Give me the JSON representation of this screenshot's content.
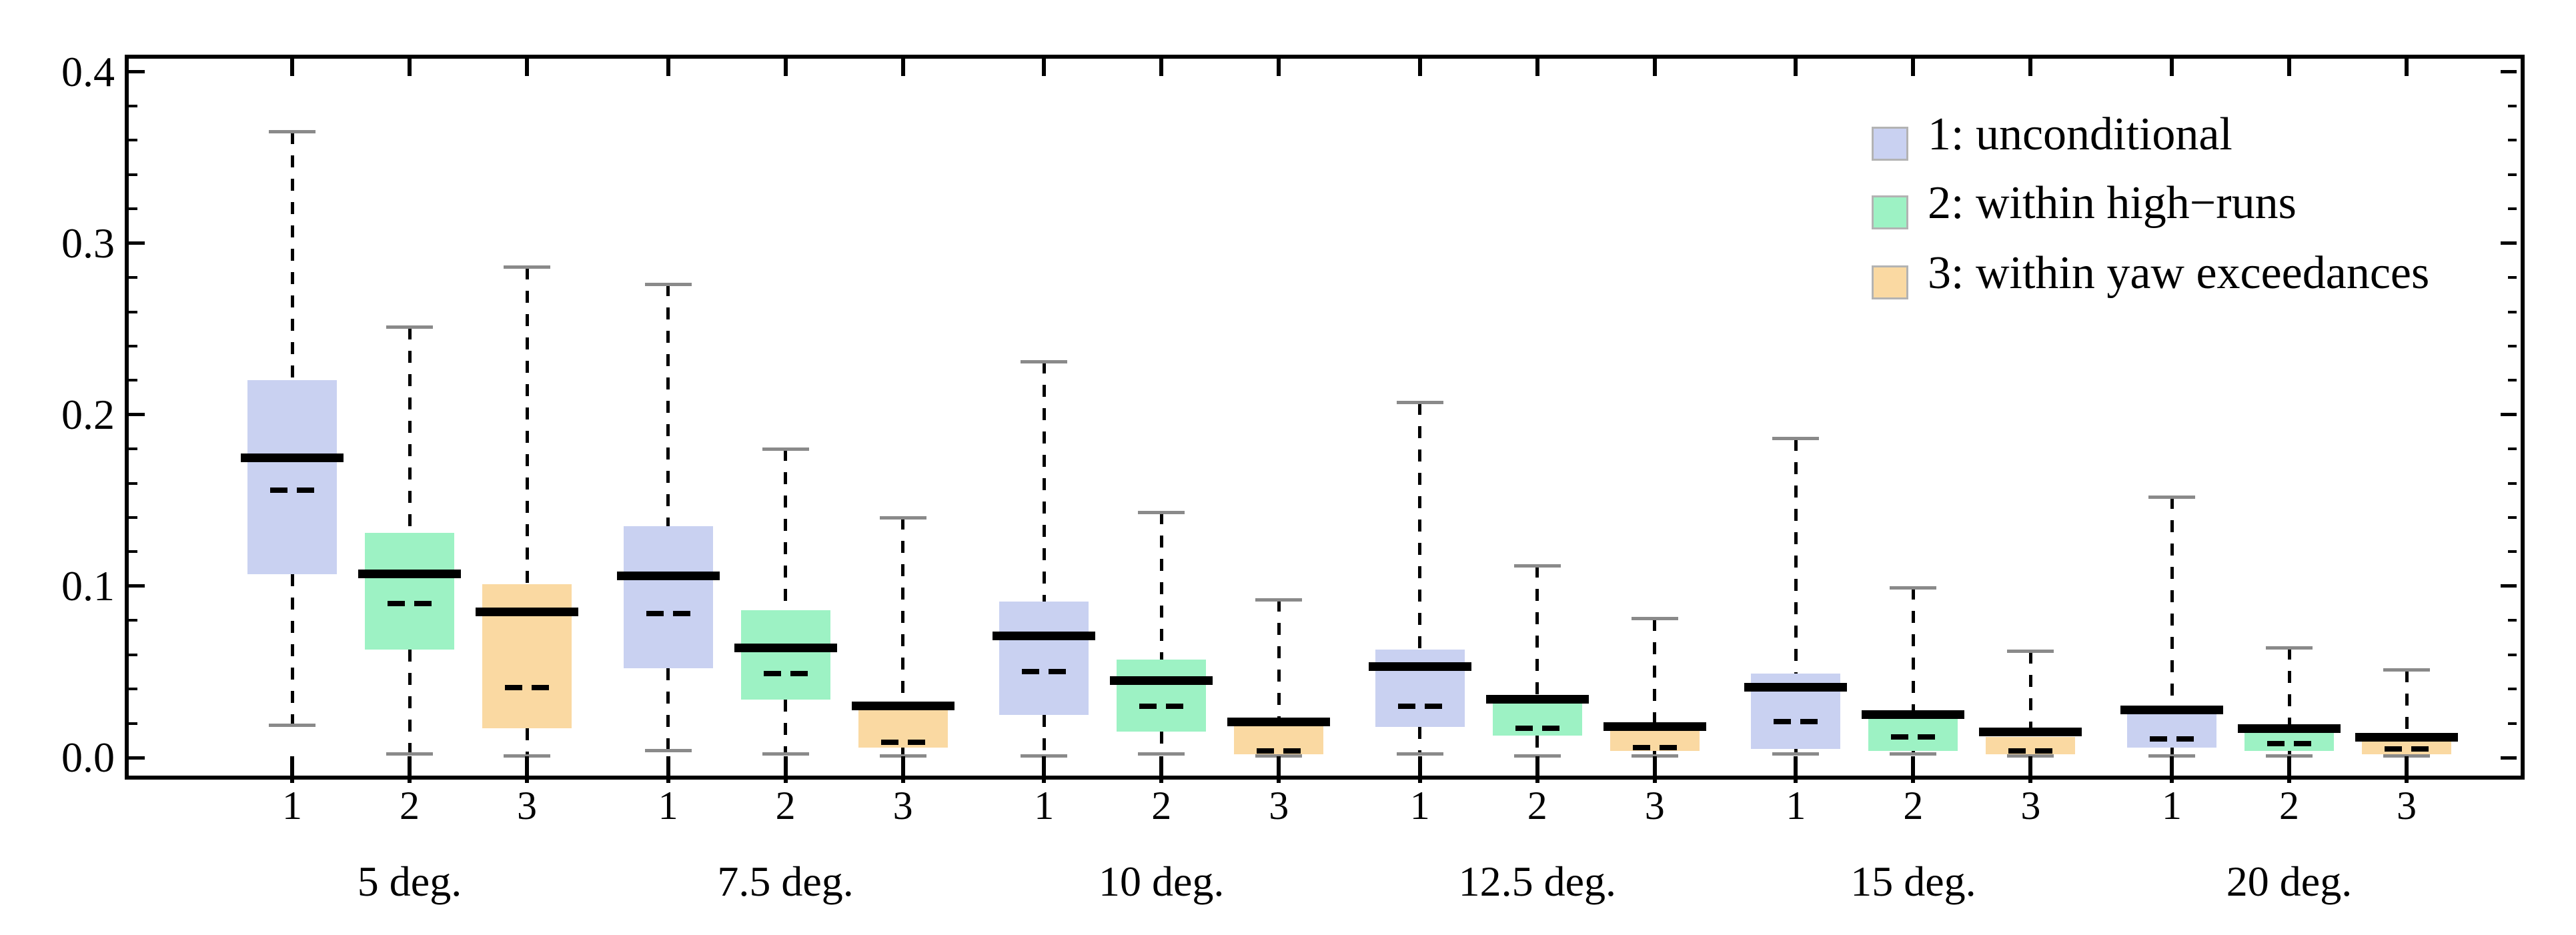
{
  "chart_data": {
    "type": "boxplot",
    "title": "",
    "ylabel": "",
    "xlabel": "",
    "ylim": [
      0,
      0.4
    ],
    "grid": false,
    "y_axis": {
      "tick_labels": [
        "0.0",
        "0.1",
        "0.2",
        "0.3",
        "0.4"
      ],
      "tick_values": [
        0.0,
        0.1,
        0.2,
        0.3,
        0.4
      ],
      "minor_tick_step": 0.02,
      "mirrored_right": true
    },
    "legend": [
      {
        "label": "1: unconditional",
        "color": "#c9d1f1"
      },
      {
        "label": "2: within high−runs",
        "color": "#9df2c4"
      },
      {
        "label": "3: within yaw exceedances",
        "color": "#fad9a2"
      }
    ],
    "legend_position": "top-right",
    "groups": [
      {
        "label": "5 deg.",
        "boxes": [
          {
            "series": "1",
            "whisker_low": 0.019,
            "q1": 0.107,
            "median": 0.175,
            "mean": 0.156,
            "q3": 0.22,
            "whisker_high": 0.365
          },
          {
            "series": "2",
            "whisker_low": 0.002,
            "q1": 0.063,
            "median": 0.107,
            "mean": 0.09,
            "q3": 0.131,
            "whisker_high": 0.251
          },
          {
            "series": "3",
            "whisker_low": 0.001,
            "q1": 0.017,
            "median": 0.085,
            "mean": 0.041,
            "q3": 0.101,
            "whisker_high": 0.286
          }
        ]
      },
      {
        "label": "7.5 deg.",
        "boxes": [
          {
            "series": "1",
            "whisker_low": 0.004,
            "q1": 0.052,
            "median": 0.106,
            "mean": 0.084,
            "q3": 0.135,
            "whisker_high": 0.276
          },
          {
            "series": "2",
            "whisker_low": 0.002,
            "q1": 0.034,
            "median": 0.064,
            "mean": 0.049,
            "q3": 0.086,
            "whisker_high": 0.18
          },
          {
            "series": "3",
            "whisker_low": 0.001,
            "q1": 0.006,
            "median": 0.03,
            "mean": 0.009,
            "q3": 0.028,
            "whisker_high": 0.14
          }
        ]
      },
      {
        "label": "10 deg.",
        "boxes": [
          {
            "series": "1",
            "whisker_low": 0.001,
            "q1": 0.025,
            "median": 0.071,
            "mean": 0.05,
            "q3": 0.091,
            "whisker_high": 0.231
          },
          {
            "series": "2",
            "whisker_low": 0.002,
            "q1": 0.015,
            "median": 0.045,
            "mean": 0.03,
            "q3": 0.057,
            "whisker_high": 0.143
          },
          {
            "series": "3",
            "whisker_low": 0.001,
            "q1": 0.002,
            "median": 0.021,
            "mean": 0.004,
            "q3": 0.019,
            "whisker_high": 0.092
          }
        ]
      },
      {
        "label": "12.5 deg.",
        "boxes": [
          {
            "series": "1",
            "whisker_low": 0.002,
            "q1": 0.018,
            "median": 0.053,
            "mean": 0.03,
            "q3": 0.063,
            "whisker_high": 0.207
          },
          {
            "series": "2",
            "whisker_low": 0.001,
            "q1": 0.013,
            "median": 0.034,
            "mean": 0.017,
            "q3": 0.032,
            "whisker_high": 0.112
          },
          {
            "series": "3",
            "whisker_low": 0.001,
            "q1": 0.004,
            "median": 0.018,
            "mean": 0.006,
            "q3": 0.016,
            "whisker_high": 0.081
          }
        ]
      },
      {
        "label": "15 deg.",
        "boxes": [
          {
            "series": "1",
            "whisker_low": 0.002,
            "q1": 0.005,
            "median": 0.041,
            "mean": 0.021,
            "q3": 0.049,
            "whisker_high": 0.186
          },
          {
            "series": "2",
            "whisker_low": 0.002,
            "q1": 0.004,
            "median": 0.025,
            "mean": 0.012,
            "q3": 0.023,
            "whisker_high": 0.099
          },
          {
            "series": "3",
            "whisker_low": 0.001,
            "q1": 0.002,
            "median": 0.015,
            "mean": 0.004,
            "q3": 0.012,
            "whisker_high": 0.062
          }
        ]
      },
      {
        "label": "20 deg.",
        "boxes": [
          {
            "series": "1",
            "whisker_low": 0.001,
            "q1": 0.006,
            "median": 0.028,
            "mean": 0.011,
            "q3": 0.027,
            "whisker_high": 0.152
          },
          {
            "series": "2",
            "whisker_low": 0.001,
            "q1": 0.004,
            "median": 0.017,
            "mean": 0.008,
            "q3": 0.015,
            "whisker_high": 0.064
          },
          {
            "series": "3",
            "whisker_low": 0.001,
            "q1": 0.002,
            "median": 0.012,
            "mean": 0.005,
            "q3": 0.01,
            "whisker_high": 0.051
          }
        ]
      }
    ],
    "style_notes": {
      "median_marker": "thick black line",
      "mean_marker": "black dashed line",
      "whisker_style": "black dashed line with gray caps"
    }
  },
  "colors": {
    "background": "#ffffff",
    "frame": "#000000",
    "median": "#000000",
    "mean": "#000000",
    "whisker": "#000000",
    "whisker_cap": "#8a8a8a",
    "legend_swatch_border": "#b3b3b3",
    "text": "#000000"
  }
}
